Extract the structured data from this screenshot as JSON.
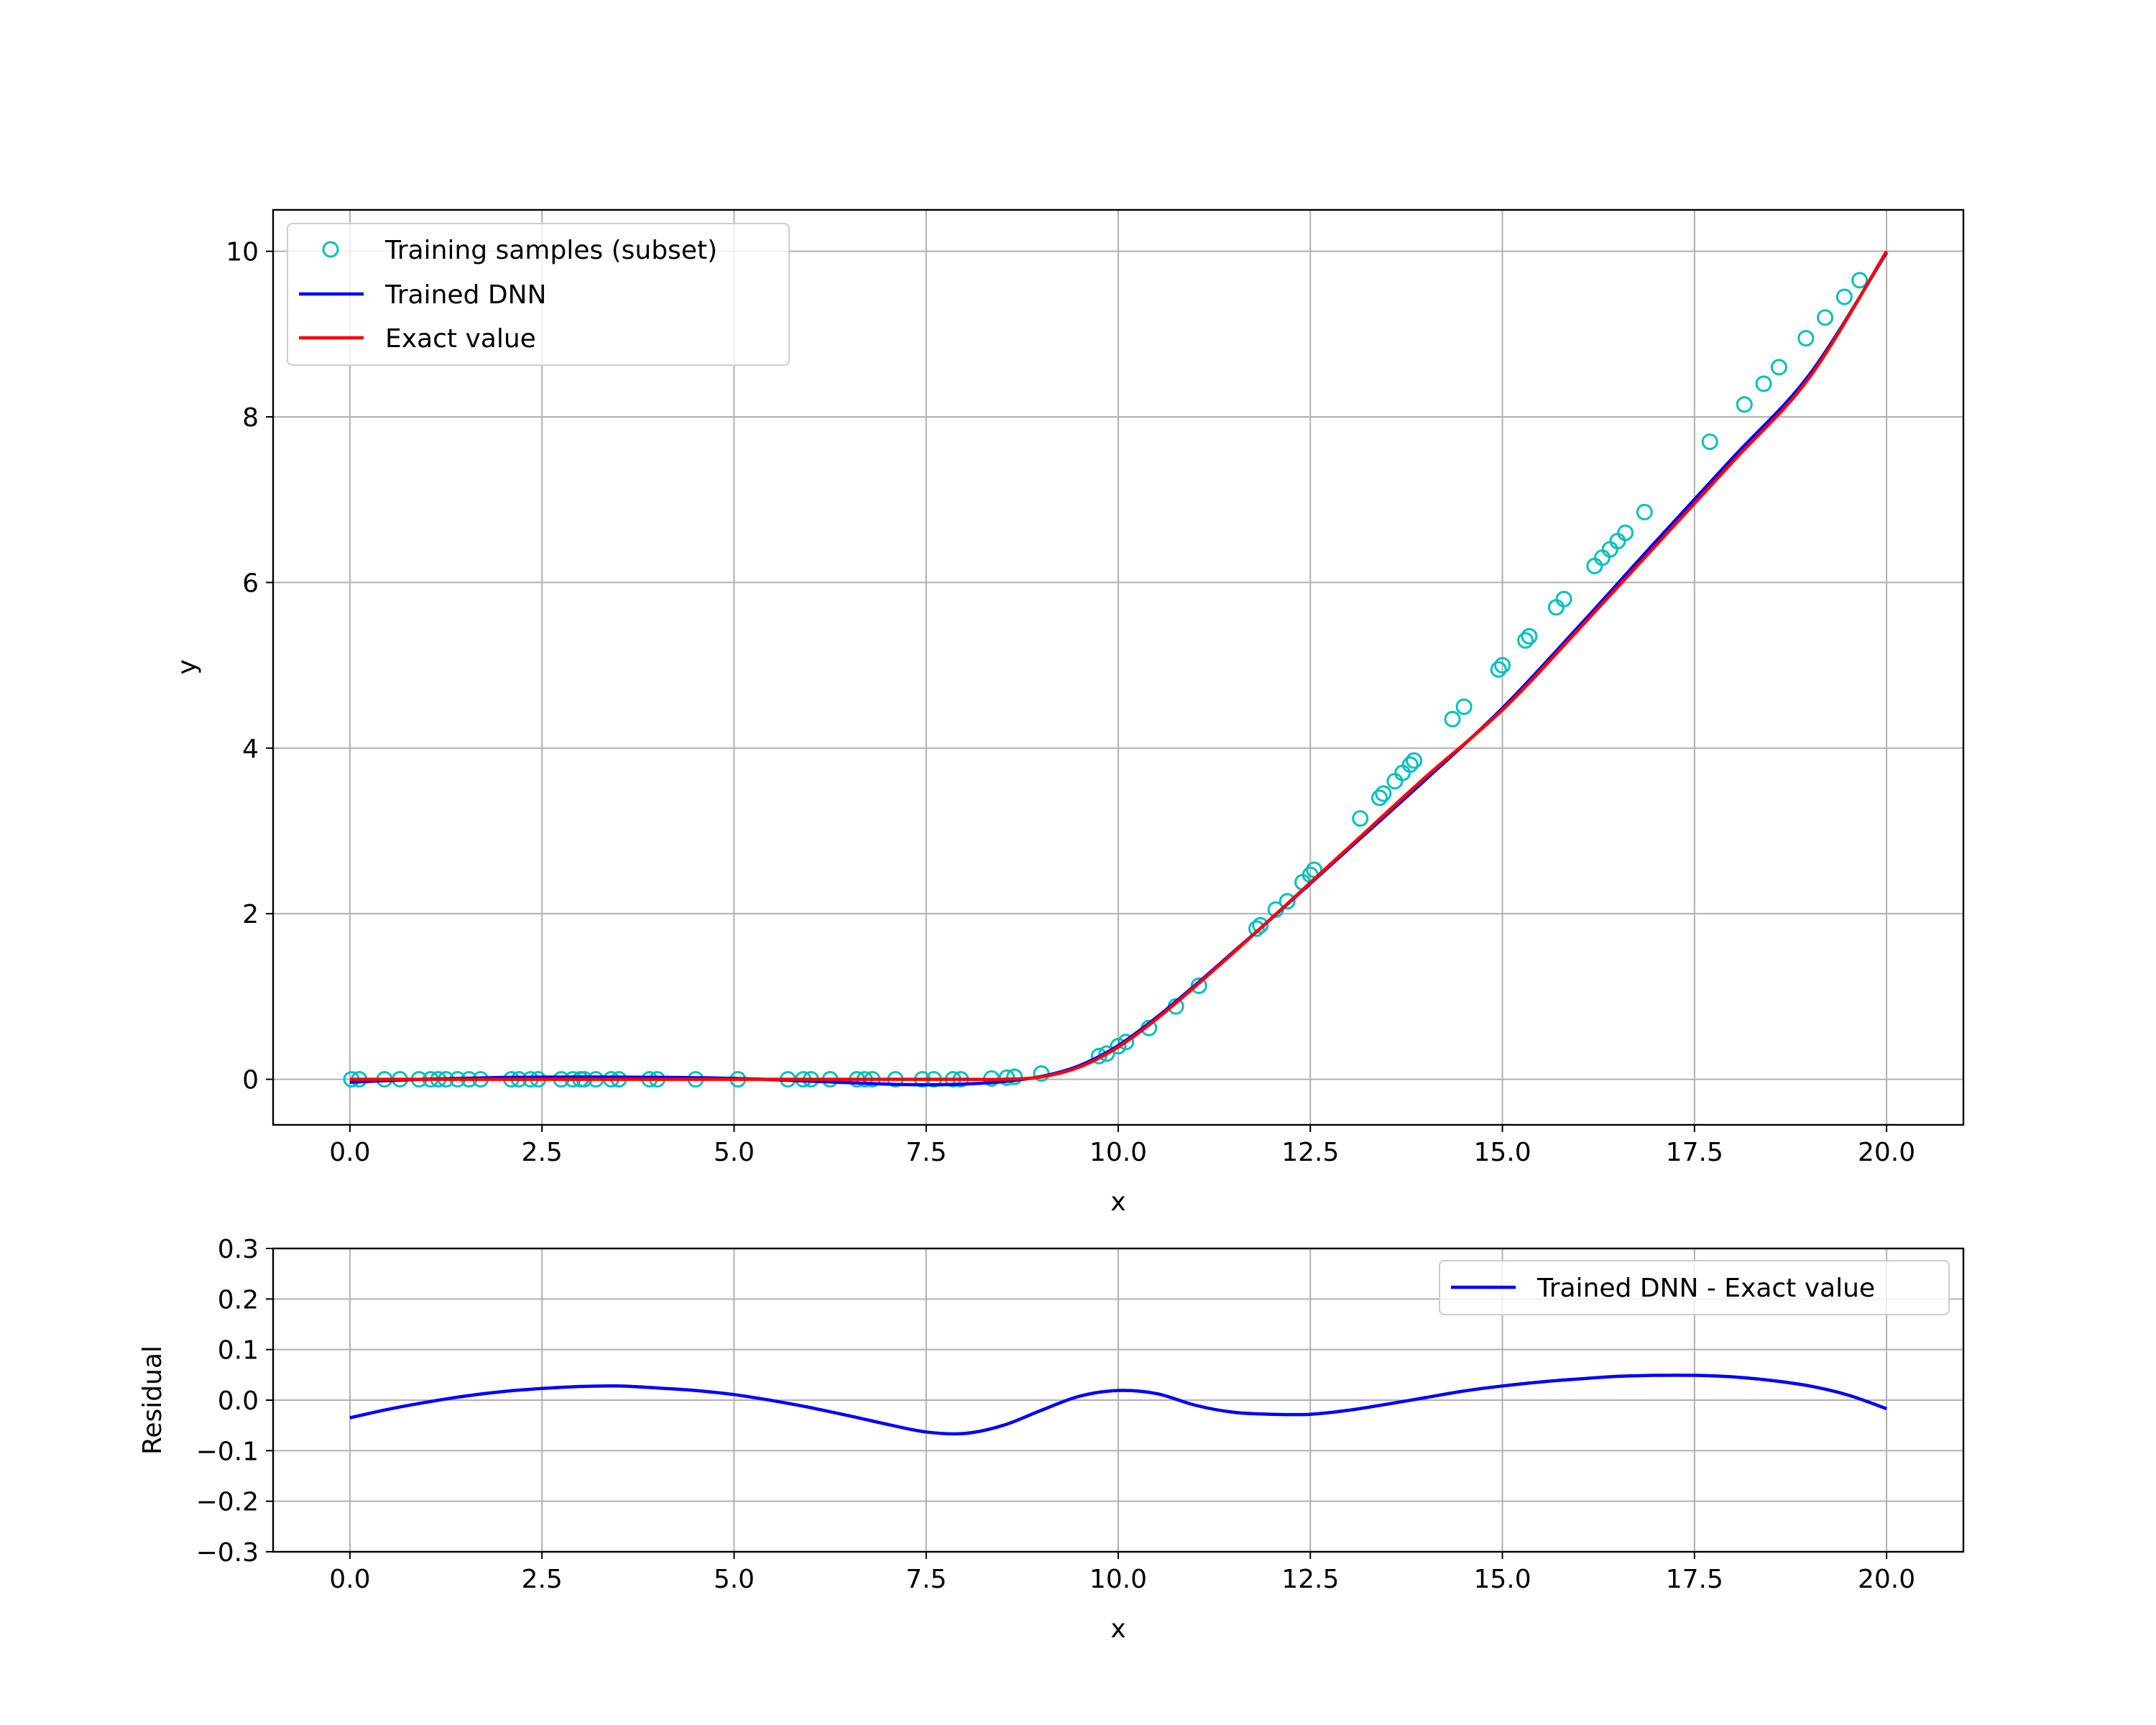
{
  "chart_data": [
    {
      "type": "line",
      "xlabel": "x",
      "ylabel": "y",
      "xlim": [
        -1.0,
        21.0
      ],
      "ylim": [
        -0.55,
        10.5
      ],
      "xticks": [
        0.0,
        2.5,
        5.0,
        7.5,
        10.0,
        12.5,
        15.0,
        17.5,
        20.0
      ],
      "xtick_labels": [
        "0.0",
        "2.5",
        "5.0",
        "7.5",
        "10.0",
        "12.5",
        "15.0",
        "17.5",
        "20.0"
      ],
      "yticks": [
        0,
        2,
        4,
        6,
        8,
        10
      ],
      "ytick_labels": [
        "0",
        "2",
        "4",
        "6",
        "8",
        "10"
      ],
      "grid": true,
      "legend_position": "top-left",
      "legend": [
        "Training samples (subset)",
        "Trained DNN",
        "Exact value"
      ],
      "series": [
        {
          "name": "Training samples (subset)",
          "kind": "scatter",
          "marker": "open-circle",
          "color": "#00bfbf",
          "x": [
            0.02,
            0.12,
            0.45,
            0.65,
            0.9,
            1.05,
            1.15,
            1.25,
            1.4,
            1.55,
            1.7,
            2.1,
            2.2,
            2.35,
            2.45,
            2.75,
            2.9,
            3.0,
            3.05,
            3.2,
            3.4,
            3.5,
            3.9,
            4.0,
            4.5,
            5.05,
            5.7,
            5.9,
            6.0,
            6.25,
            6.6,
            6.7,
            6.8,
            7.1,
            7.45,
            7.6,
            7.85,
            7.95,
            8.35,
            8.55,
            8.65,
            9.0,
            9.75,
            9.85,
            10.0,
            10.1,
            10.4,
            10.75,
            11.05,
            11.8,
            11.85,
            12.05,
            12.2,
            12.4,
            12.5,
            12.55,
            13.15,
            13.4,
            13.45,
            13.6,
            13.7,
            13.8,
            13.85,
            14.35,
            14.5,
            14.95,
            15.0,
            15.3,
            15.35,
            15.7,
            15.8,
            16.2,
            16.3,
            16.4,
            16.5,
            16.6,
            16.85,
            17.7,
            18.15,
            18.4,
            18.6,
            18.95,
            19.2,
            19.45,
            19.65
          ],
          "y": [
            0.0,
            0.0,
            0.0,
            0.0,
            0.0,
            0.0,
            0.0,
            0.0,
            0.0,
            0.0,
            0.0,
            0.0,
            0.0,
            0.0,
            0.0,
            0.0,
            0.0,
            0.0,
            0.0,
            0.0,
            0.0,
            0.0,
            0.0,
            0.0,
            0.0,
            0.0,
            0.0,
            0.0,
            0.0,
            0.0,
            0.0,
            0.0,
            0.0,
            0.0,
            0.0,
            0.0,
            0.0,
            0.0,
            0.01,
            0.02,
            0.03,
            0.07,
            0.28,
            0.31,
            0.4,
            0.45,
            0.62,
            0.88,
            1.13,
            1.82,
            1.86,
            2.05,
            2.15,
            2.38,
            2.47,
            2.53,
            3.15,
            3.4,
            3.45,
            3.6,
            3.7,
            3.8,
            3.85,
            4.35,
            4.5,
            4.95,
            5.0,
            5.3,
            5.35,
            5.7,
            5.8,
            6.2,
            6.3,
            6.4,
            6.5,
            6.6,
            6.85,
            7.7,
            8.15,
            8.4,
            8.6,
            8.95,
            9.2,
            9.45,
            9.65
          ]
        },
        {
          "name": "Trained DNN",
          "kind": "line",
          "color": "#0000ff",
          "x": [
            0.0,
            1.0,
            2.0,
            3.0,
            4.0,
            5.0,
            6.0,
            7.0,
            7.5,
            8.0,
            8.5,
            9.0,
            9.5,
            10.0,
            10.5,
            11.0,
            11.5,
            12.0,
            13.0,
            14.0,
            15.0,
            16.0,
            17.0,
            18.0,
            19.0,
            20.0
          ],
          "y": [
            -0.035,
            0.002,
            0.023,
            0.028,
            0.024,
            0.011,
            -0.022,
            -0.059,
            -0.066,
            -0.057,
            -0.028,
            0.035,
            0.167,
            0.408,
            0.749,
            1.136,
            1.54,
            1.947,
            2.783,
            3.619,
            4.482,
            5.476,
            6.499,
            7.508,
            8.515,
            9.983
          ]
        },
        {
          "name": "Exact value",
          "kind": "line",
          "color": "#ff0000",
          "x": [
            0.0,
            1.0,
            2.0,
            3.0,
            4.0,
            5.0,
            6.0,
            7.0,
            7.5,
            8.0,
            8.5,
            9.0,
            9.5,
            10.0,
            10.5,
            11.0,
            11.5,
            12.0,
            13.0,
            14.0,
            15.0,
            16.0,
            17.0,
            18.0,
            19.0,
            20.0
          ],
          "y": [
            0.0,
            0.0,
            0.0,
            0.0,
            0.0,
            0.0,
            0.0,
            0.0,
            0.0,
            0.0,
            0.0,
            0.03,
            0.15,
            0.39,
            0.73,
            1.12,
            1.53,
            1.95,
            2.8,
            3.65,
            4.46,
            5.44,
            6.45,
            7.46,
            8.48,
            10.0
          ]
        }
      ]
    },
    {
      "type": "line",
      "xlabel": "x",
      "ylabel": "Residual",
      "xlim": [
        -1.0,
        21.0
      ],
      "ylim": [
        -0.3,
        0.3
      ],
      "xticks": [
        0.0,
        2.5,
        5.0,
        7.5,
        10.0,
        12.5,
        15.0,
        17.5,
        20.0
      ],
      "xtick_labels": [
        "0.0",
        "2.5",
        "5.0",
        "7.5",
        "10.0",
        "12.5",
        "15.0",
        "17.5",
        "20.0"
      ],
      "yticks": [
        -0.3,
        -0.2,
        -0.1,
        0.0,
        0.1,
        0.2,
        0.3
      ],
      "ytick_labels": [
        "−0.3",
        "−0.2",
        "−0.1",
        "0.0",
        "0.1",
        "0.2",
        "0.3"
      ],
      "grid": true,
      "legend_position": "top-right",
      "legend": [
        "Trained DNN - Exact value"
      ],
      "series": [
        {
          "name": "Trained DNN - Exact value",
          "kind": "line",
          "color": "#0000ff",
          "x": [
            0.0,
            0.5,
            1.0,
            1.5,
            2.0,
            2.5,
            3.0,
            3.5,
            4.0,
            4.5,
            5.0,
            5.5,
            6.0,
            6.5,
            7.0,
            7.5,
            8.0,
            8.5,
            9.0,
            9.5,
            10.0,
            10.5,
            11.0,
            11.5,
            12.0,
            12.5,
            13.0,
            13.5,
            14.0,
            14.5,
            15.0,
            15.5,
            16.0,
            16.5,
            17.0,
            17.5,
            18.0,
            18.5,
            19.0,
            19.5,
            20.0
          ],
          "y": [
            -0.035,
            -0.018,
            -0.004,
            0.008,
            0.017,
            0.023,
            0.027,
            0.028,
            0.024,
            0.019,
            0.011,
            -0.001,
            -0.015,
            -0.031,
            -0.048,
            -0.063,
            -0.066,
            -0.05,
            -0.02,
            0.008,
            0.019,
            0.013,
            -0.01,
            -0.024,
            -0.028,
            -0.028,
            -0.02,
            -0.008,
            0.005,
            0.018,
            0.028,
            0.036,
            0.042,
            0.047,
            0.049,
            0.049,
            0.046,
            0.039,
            0.028,
            0.01,
            -0.017
          ]
        }
      ]
    }
  ]
}
